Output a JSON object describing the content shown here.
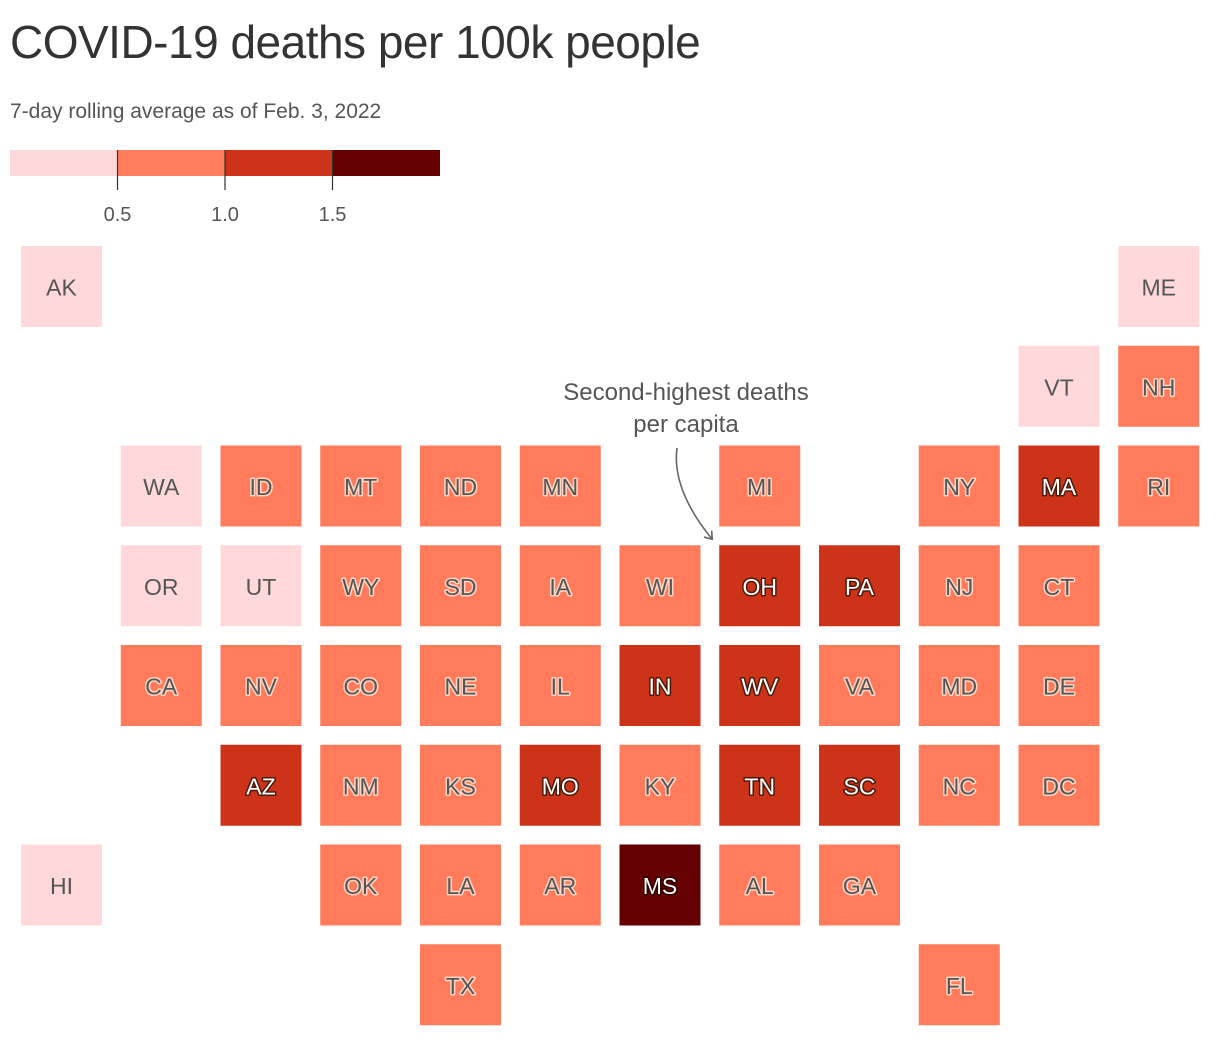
{
  "header": {
    "title": "COVID-19 deaths per 100k people",
    "subtitle": "7-day rolling average as of Feb. 3, 2022"
  },
  "legend": {
    "thresholds": [
      0.5,
      1.0,
      1.5
    ],
    "tick_labels": [
      "0.5",
      "1.0",
      "1.5"
    ],
    "bins": [
      {
        "bin": 0,
        "color": "#ffd9d9"
      },
      {
        "bin": 1,
        "color": "#ff7b5c"
      },
      {
        "bin": 2,
        "color": "#cc3318"
      },
      {
        "bin": 3,
        "color": "#660000"
      }
    ]
  },
  "annotation": {
    "lines": [
      "Second-highest deaths",
      "per capita"
    ],
    "target_state": "OH"
  },
  "chart_data": {
    "type": "heatmap",
    "title": "COVID-19 deaths per 100k people",
    "subtitle": "7-day rolling average as of Feb. 3, 2022",
    "legend_breaks": [
      0.5,
      1.0,
      1.5
    ],
    "states": [
      {
        "abbr": "AK",
        "row": 0,
        "col": 0,
        "bin": 0
      },
      {
        "abbr": "ME",
        "row": 0,
        "col": 11,
        "bin": 0
      },
      {
        "abbr": "VT",
        "row": 1,
        "col": 10,
        "bin": 0
      },
      {
        "abbr": "NH",
        "row": 1,
        "col": 11,
        "bin": 1
      },
      {
        "abbr": "WA",
        "row": 2,
        "col": 1,
        "bin": 0
      },
      {
        "abbr": "ID",
        "row": 2,
        "col": 2,
        "bin": 1
      },
      {
        "abbr": "MT",
        "row": 2,
        "col": 3,
        "bin": 1
      },
      {
        "abbr": "ND",
        "row": 2,
        "col": 4,
        "bin": 1
      },
      {
        "abbr": "MN",
        "row": 2,
        "col": 5,
        "bin": 1
      },
      {
        "abbr": "MI",
        "row": 2,
        "col": 7,
        "bin": 1
      },
      {
        "abbr": "NY",
        "row": 2,
        "col": 9,
        "bin": 1
      },
      {
        "abbr": "MA",
        "row": 2,
        "col": 10,
        "bin": 2
      },
      {
        "abbr": "RI",
        "row": 2,
        "col": 11,
        "bin": 1
      },
      {
        "abbr": "OR",
        "row": 3,
        "col": 1,
        "bin": 0
      },
      {
        "abbr": "UT",
        "row": 3,
        "col": 2,
        "bin": 0
      },
      {
        "abbr": "WY",
        "row": 3,
        "col": 3,
        "bin": 1
      },
      {
        "abbr": "SD",
        "row": 3,
        "col": 4,
        "bin": 1
      },
      {
        "abbr": "IA",
        "row": 3,
        "col": 5,
        "bin": 1
      },
      {
        "abbr": "WI",
        "row": 3,
        "col": 6,
        "bin": 1
      },
      {
        "abbr": "OH",
        "row": 3,
        "col": 7,
        "bin": 2
      },
      {
        "abbr": "PA",
        "row": 3,
        "col": 8,
        "bin": 2
      },
      {
        "abbr": "NJ",
        "row": 3,
        "col": 9,
        "bin": 1
      },
      {
        "abbr": "CT",
        "row": 3,
        "col": 10,
        "bin": 1
      },
      {
        "abbr": "CA",
        "row": 4,
        "col": 1,
        "bin": 1
      },
      {
        "abbr": "NV",
        "row": 4,
        "col": 2,
        "bin": 1
      },
      {
        "abbr": "CO",
        "row": 4,
        "col": 3,
        "bin": 1
      },
      {
        "abbr": "NE",
        "row": 4,
        "col": 4,
        "bin": 1
      },
      {
        "abbr": "IL",
        "row": 4,
        "col": 5,
        "bin": 1
      },
      {
        "abbr": "IN",
        "row": 4,
        "col": 6,
        "bin": 2
      },
      {
        "abbr": "WV",
        "row": 4,
        "col": 7,
        "bin": 2
      },
      {
        "abbr": "VA",
        "row": 4,
        "col": 8,
        "bin": 1
      },
      {
        "abbr": "MD",
        "row": 4,
        "col": 9,
        "bin": 1
      },
      {
        "abbr": "DE",
        "row": 4,
        "col": 10,
        "bin": 1
      },
      {
        "abbr": "AZ",
        "row": 5,
        "col": 2,
        "bin": 2
      },
      {
        "abbr": "NM",
        "row": 5,
        "col": 3,
        "bin": 1
      },
      {
        "abbr": "KS",
        "row": 5,
        "col": 4,
        "bin": 1
      },
      {
        "abbr": "MO",
        "row": 5,
        "col": 5,
        "bin": 2
      },
      {
        "abbr": "KY",
        "row": 5,
        "col": 6,
        "bin": 1
      },
      {
        "abbr": "TN",
        "row": 5,
        "col": 7,
        "bin": 2
      },
      {
        "abbr": "SC",
        "row": 5,
        "col": 8,
        "bin": 2
      },
      {
        "abbr": "NC",
        "row": 5,
        "col": 9,
        "bin": 1
      },
      {
        "abbr": "DC",
        "row": 5,
        "col": 10,
        "bin": 1
      },
      {
        "abbr": "HI",
        "row": 6,
        "col": 0,
        "bin": 0
      },
      {
        "abbr": "OK",
        "row": 6,
        "col": 3,
        "bin": 1
      },
      {
        "abbr": "LA",
        "row": 6,
        "col": 4,
        "bin": 1
      },
      {
        "abbr": "AR",
        "row": 6,
        "col": 5,
        "bin": 1
      },
      {
        "abbr": "MS",
        "row": 6,
        "col": 6,
        "bin": 3
      },
      {
        "abbr": "AL",
        "row": 6,
        "col": 7,
        "bin": 1
      },
      {
        "abbr": "GA",
        "row": 6,
        "col": 8,
        "bin": 1
      },
      {
        "abbr": "TX",
        "row": 7,
        "col": 4,
        "bin": 1
      },
      {
        "abbr": "FL",
        "row": 7,
        "col": 9,
        "bin": 1
      }
    ]
  }
}
